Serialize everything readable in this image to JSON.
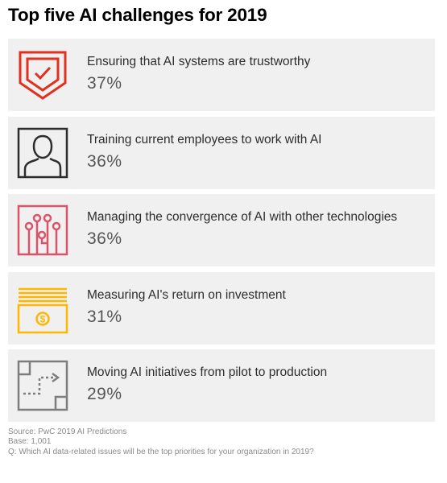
{
  "title": "Top five AI challenges for 2019",
  "chart_data": {
    "type": "table",
    "title": "Top five AI challenges for 2019",
    "categories": [
      "Ensuring that AI systems are trustworthy",
      "Training current employees to work with AI",
      "Managing the convergence of AI with other technologies",
      "Measuring AI's return on investment",
      "Moving AI initiatives from pilot to production"
    ],
    "values": [
      37,
      36,
      36,
      31,
      29
    ],
    "rows": [
      {
        "label": "Ensuring that AI systems are trustworthy",
        "value": "37%",
        "icon": "shield-check-icon",
        "color": "#e0301e"
      },
      {
        "label": "Training current employees to work with AI",
        "value": "36%",
        "icon": "person-icon",
        "color": "#2d2d2d"
      },
      {
        "label": "Managing the convergence of AI with other technologies",
        "value": "36%",
        "icon": "circuit-icon",
        "color": "#db536a"
      },
      {
        "label": "Measuring AI's return on investment",
        "value": "31%",
        "icon": "money-icon",
        "color": "#ffb600"
      },
      {
        "label": "Moving AI initiatives from pilot to production",
        "value": "29%",
        "icon": "path-arrow-icon",
        "color": "#7d7d7d"
      }
    ]
  },
  "footer": {
    "source": "Source: PwC 2019 AI Predictions",
    "base": "Base: 1,001",
    "question": "Q: Which AI data-related issues will be the top priorities for your organization in 2019?"
  }
}
